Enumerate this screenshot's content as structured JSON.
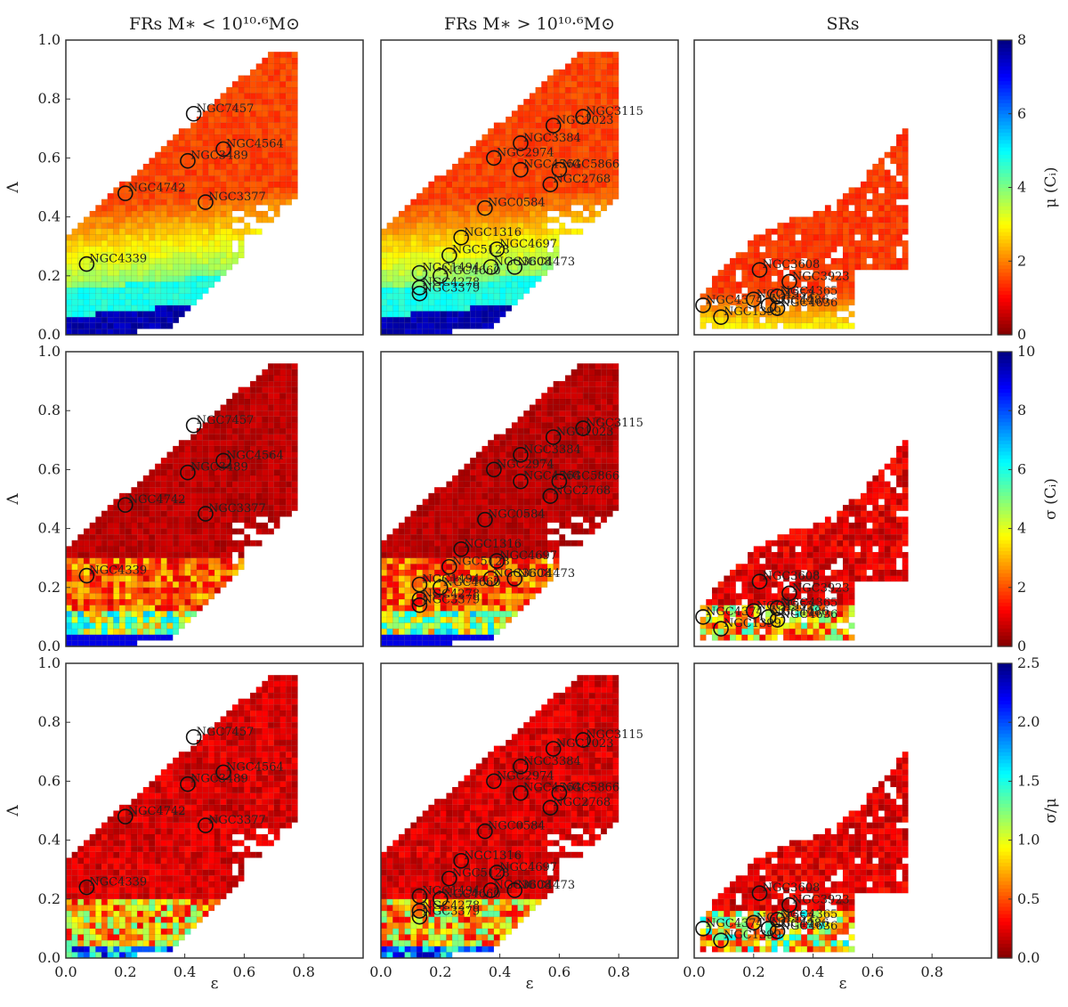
{
  "chart_data": {
    "type": "heatmap",
    "column_titles": [
      "FRs M∗ < 10¹⁰·⁶M⊙",
      "FRs M∗ > 10¹⁰·⁶M⊙",
      "SRs"
    ],
    "xlabel": "ε",
    "ylabel": "Λ",
    "xlim": [
      0.0,
      1.0
    ],
    "ylim": [
      0.0,
      1.0
    ],
    "x_ticks": [
      "0.0",
      "0.2",
      "0.4",
      "0.6",
      "0.8"
    ],
    "y_ticks": [
      "0.0",
      "0.2",
      "0.4",
      "0.6",
      "0.8",
      "1.0"
    ],
    "rows": [
      {
        "colorbar_label": "μ (Cᵢ)",
        "cbar_range": [
          0,
          8
        ],
        "cbar_ticks": [
          "0",
          "2",
          "4",
          "6",
          "8"
        ],
        "colormap": "jet_r"
      },
      {
        "colorbar_label": "σ (Cᵢ)",
        "cbar_range": [
          0,
          10
        ],
        "cbar_ticks": [
          "0",
          "2",
          "4",
          "6",
          "8",
          "10"
        ],
        "colormap": "jet_r"
      },
      {
        "colorbar_label": "σ/μ",
        "cbar_range": [
          0,
          2.5
        ],
        "cbar_ticks": [
          "0.0",
          "0.5",
          "1.0",
          "1.5",
          "2.0",
          "2.5"
        ],
        "colormap": "jet_r"
      }
    ],
    "galaxies": [
      [
        {
          "name": "NGC7457",
          "x": 0.43,
          "y": 0.75
        },
        {
          "name": "NGC4564",
          "x": 0.53,
          "y": 0.63
        },
        {
          "name": "NGC3489",
          "x": 0.41,
          "y": 0.59
        },
        {
          "name": "NGC4742",
          "x": 0.2,
          "y": 0.48
        },
        {
          "name": "NGC3377",
          "x": 0.47,
          "y": 0.45
        },
        {
          "name": "NGC4339",
          "x": 0.07,
          "y": 0.24
        }
      ],
      [
        {
          "name": "NGC3115",
          "x": 0.68,
          "y": 0.74
        },
        {
          "name": "NGC1023",
          "x": 0.58,
          "y": 0.71
        },
        {
          "name": "NGC3384",
          "x": 0.47,
          "y": 0.65
        },
        {
          "name": "NGC2974",
          "x": 0.38,
          "y": 0.6
        },
        {
          "name": "NGC4564",
          "x": 0.47,
          "y": 0.56
        },
        {
          "name": "NGC5866",
          "x": 0.6,
          "y": 0.56
        },
        {
          "name": "NGC2768",
          "x": 0.57,
          "y": 0.51
        },
        {
          "name": "NGC0584",
          "x": 0.35,
          "y": 0.43
        },
        {
          "name": "NGC1316",
          "x": 0.27,
          "y": 0.33
        },
        {
          "name": "NGC4697",
          "x": 0.39,
          "y": 0.29
        },
        {
          "name": "NGC5128",
          "x": 0.23,
          "y": 0.27
        },
        {
          "name": "NGC3608",
          "x": 0.37,
          "y": 0.23
        },
        {
          "name": "NGC4473",
          "x": 0.45,
          "y": 0.23
        },
        {
          "name": "NGC1494",
          "x": 0.13,
          "y": 0.21
        },
        {
          "name": "NGC4660",
          "x": 0.2,
          "y": 0.2
        },
        {
          "name": "NGC4278",
          "x": 0.13,
          "y": 0.16
        },
        {
          "name": "NGC3379",
          "x": 0.13,
          "y": 0.14
        }
      ],
      [
        {
          "name": "NGC3608",
          "x": 0.22,
          "y": 0.22
        },
        {
          "name": "NGC3923",
          "x": 0.32,
          "y": 0.18
        },
        {
          "name": "NGC4365",
          "x": 0.28,
          "y": 0.13
        },
        {
          "name": "NGC4552",
          "x": 0.2,
          "y": 0.12
        },
        {
          "name": "NGC4374",
          "x": 0.03,
          "y": 0.1
        },
        {
          "name": "NGC4486",
          "x": 0.25,
          "y": 0.1
        },
        {
          "name": "NGC4636",
          "x": 0.28,
          "y": 0.09
        },
        {
          "name": "NGC1399",
          "x": 0.09,
          "y": 0.06
        }
      ]
    ]
  }
}
